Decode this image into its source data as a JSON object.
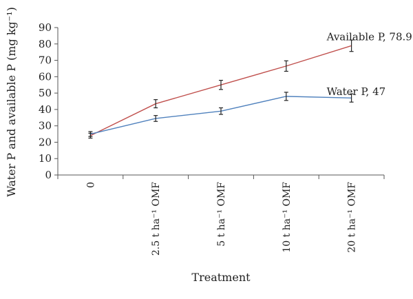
{
  "chart_data": {
    "type": "line",
    "categories": [
      "0",
      "2.5 t ha⁻¹ OMF",
      "5 t ha⁻¹ OMF",
      "10 t ha⁻¹ OMF",
      "20 t ha⁻¹ OMF"
    ],
    "ylabel": "Water P and available P (mg kg⁻¹)",
    "xlabel": "Treatment",
    "ylim": [
      0,
      90
    ],
    "yticks": [
      0,
      10,
      20,
      30,
      40,
      50,
      60,
      70,
      80,
      90
    ],
    "series": [
      {
        "name": "Available P",
        "values": [
          24,
          43.5,
          55,
          66.5,
          78.9
        ],
        "errors": [
          1.5,
          2.5,
          2.8,
          3.2,
          3.5
        ],
        "color": "#c0504d",
        "label": "Available P, 78.9"
      },
      {
        "name": "Water P",
        "values": [
          25,
          34.5,
          39,
          48,
          47
        ],
        "errors": [
          1.5,
          1.8,
          2.0,
          2.5,
          2.5
        ],
        "color": "#4f81bd",
        "label": "Water P, 47"
      }
    ],
    "grid": false,
    "legend": "none"
  }
}
